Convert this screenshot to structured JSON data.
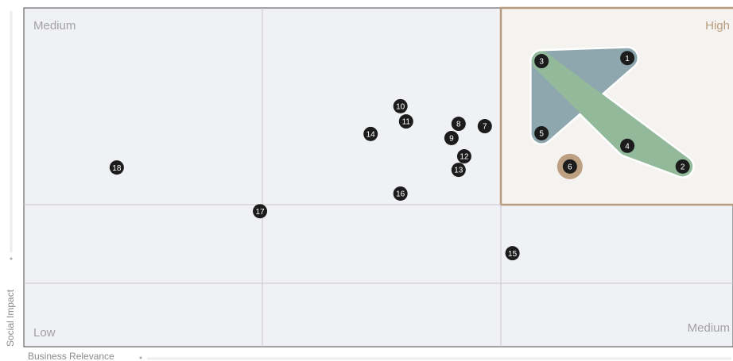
{
  "chart_data": {
    "type": "scatter",
    "x_label": "Business Relevance",
    "y_label": "Social Impact",
    "zone_labels": [
      "Medium",
      "High",
      "Low",
      "Medium"
    ],
    "xlim": [
      0,
      100
    ],
    "ylim": [
      0,
      100
    ],
    "labels": [
      "1",
      "2",
      "3",
      "4",
      "5",
      "6",
      "7",
      "8",
      "9",
      "10",
      "11",
      "12",
      "13",
      "14",
      "15",
      "16",
      "17",
      "18"
    ],
    "x": [
      85.1,
      92.9,
      73.0,
      85.1,
      73.0,
      77.0,
      65.0,
      61.3,
      60.3,
      53.1,
      53.9,
      62.1,
      61.3,
      48.9,
      68.9,
      53.1,
      33.3,
      13.1
    ],
    "y": [
      85.2,
      53.2,
      84.3,
      59.3,
      63.0,
      53.2,
      65.1,
      65.8,
      61.6,
      71.0,
      66.5,
      56.2,
      52.2,
      62.8,
      27.6,
      45.2,
      40.0,
      52.9
    ],
    "point_color": "#1c1c1c",
    "highlight": [
      5
    ],
    "highlight_color": "#bd9f82",
    "groups": [
      {
        "color": "#8ea6ae",
        "members": [
          2,
          0,
          4
        ]
      },
      {
        "color": "#93b99b",
        "members": [
          2,
          3,
          1
        ]
      }
    ]
  }
}
